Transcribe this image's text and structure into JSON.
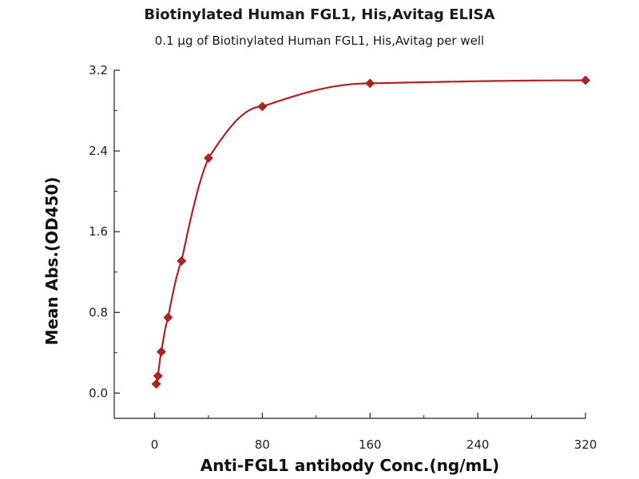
{
  "chart_data": {
    "type": "scatter",
    "title": "Biotinylated Human FGL1, His,Avitag ELISA",
    "subtitle": "0.1 µg of Biotinylated Human FGL1, His,Avitag per well",
    "xlabel": "Anti-FGL1 antibody Conc.(ng/mL)",
    "ylabel": "Mean Abs.(OD450)",
    "xlim": [
      -30,
      320
    ],
    "ylim": [
      -0.25,
      3.2
    ],
    "xticks": [
      0,
      80,
      160,
      240,
      320
    ],
    "xtick_labels": [
      "0",
      "80",
      "160",
      "240",
      "320"
    ],
    "yticks": [
      0.0,
      0.8,
      1.6,
      2.4,
      3.2
    ],
    "ytick_labels": [
      "0.0",
      "0.8",
      "1.6",
      "2.4",
      "3.2"
    ],
    "grid": false,
    "series": [
      {
        "marker": "diamond",
        "color": "#b22222",
        "x": [
          1.25,
          2.5,
          5,
          10,
          20,
          40,
          80,
          160,
          320
        ],
        "y": [
          0.09,
          0.17,
          0.41,
          0.75,
          1.31,
          2.33,
          2.84,
          3.07,
          3.1
        ],
        "fit_curve": true
      }
    ]
  }
}
